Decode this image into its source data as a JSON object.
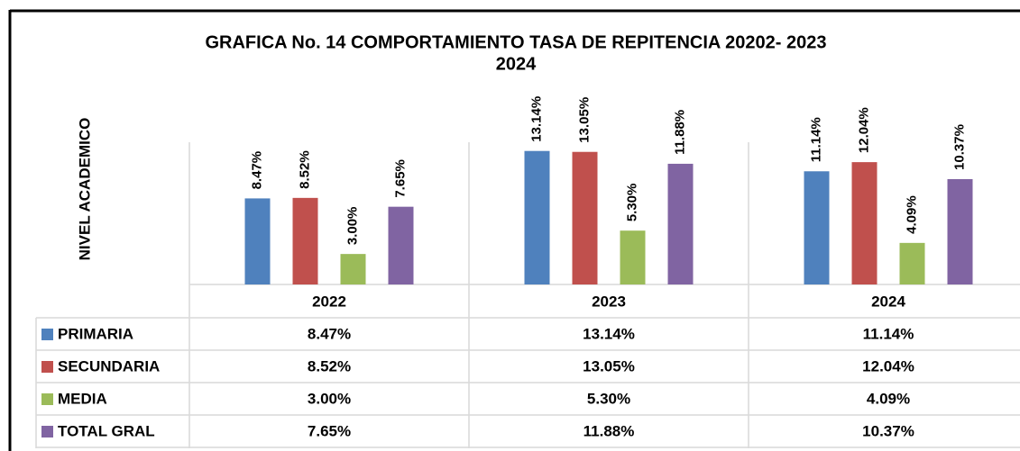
{
  "chart_data": {
    "type": "bar",
    "title": [
      "GRAFICA No. 14 COMPORTAMIENTO TASA DE REPITENCIA 20202- 2023",
      "2024"
    ],
    "y_label": "NIVEL ACADEMICO",
    "categories": [
      "2022",
      "2023",
      "2024"
    ],
    "ylim": [
      0,
      14
    ],
    "series": [
      {
        "name": "PRIMARIA",
        "color": "#4f81bd",
        "values": [
          8.47,
          13.14,
          11.14
        ],
        "value_labels": [
          "8.47%",
          "13.14%",
          "11.14%"
        ]
      },
      {
        "name": "SECUNDARIA",
        "color": "#c0504d",
        "values": [
          8.52,
          13.05,
          12.04
        ],
        "value_labels": [
          "8.52%",
          "13.05%",
          "12.04%"
        ]
      },
      {
        "name": "MEDIA",
        "color": "#9bbb59",
        "values": [
          3.0,
          5.3,
          4.09
        ],
        "value_labels": [
          "3.00%",
          "5.30%",
          "4.09%"
        ]
      },
      {
        "name": "TOTAL GRAL",
        "color": "#8064a2",
        "values": [
          7.65,
          11.88,
          10.37
        ],
        "value_labels": [
          "7.65%",
          "11.88%",
          "10.37%"
        ]
      }
    ]
  }
}
